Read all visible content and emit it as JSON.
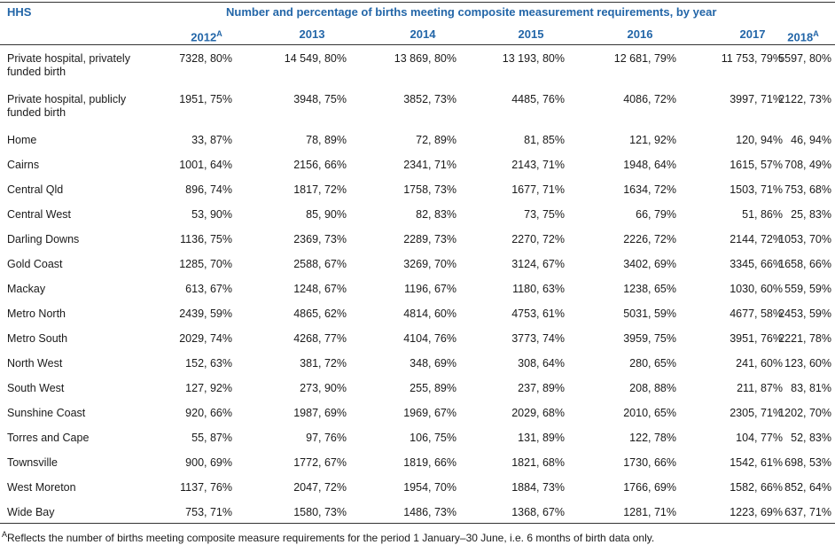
{
  "header": {
    "first_column": "HHS",
    "title": "Number and percentage of births meeting composite measurement requirements, by year"
  },
  "columns": [
    {
      "year": "2012",
      "note": "A"
    },
    {
      "year": "2013"
    },
    {
      "year": "2014"
    },
    {
      "year": "2015"
    },
    {
      "year": "2016"
    },
    {
      "year": "2017"
    },
    {
      "year": "2018",
      "note": "A"
    }
  ],
  "rows": [
    {
      "label": "Private hospital, privately funded birth",
      "cells": [
        "7328, 80%",
        "14 549, 80%",
        "13 869, 80%",
        "13 193, 80%",
        "12 681, 79%",
        "11 753, 79%",
        "5597, 80%"
      ]
    },
    {
      "label": "Private hospital, publicly funded birth",
      "cells": [
        "1951, 75%",
        "3948, 75%",
        "3852, 73%",
        "4485, 76%",
        "4086, 72%",
        "3997, 71%",
        "2122, 73%"
      ]
    },
    {
      "label": "Home",
      "cells": [
        "33, 87%",
        "78, 89%",
        "72, 89%",
        "81, 85%",
        "121, 92%",
        "120, 94%",
        "46, 94%"
      ]
    },
    {
      "label": "Cairns",
      "cells": [
        "1001, 64%",
        "2156, 66%",
        "2341, 71%",
        "2143, 71%",
        "1948, 64%",
        "1615, 57%",
        "708, 49%"
      ]
    },
    {
      "label": "Central Qld",
      "cells": [
        "896, 74%",
        "1817, 72%",
        "1758, 73%",
        "1677, 71%",
        "1634, 72%",
        "1503, 71%",
        "753, 68%"
      ]
    },
    {
      "label": "Central West",
      "cells": [
        "53, 90%",
        "85, 90%",
        "82, 83%",
        "73, 75%",
        "66, 79%",
        "51, 86%",
        "25, 83%"
      ]
    },
    {
      "label": "Darling Downs",
      "cells": [
        "1136, 75%",
        "2369, 73%",
        "2289, 73%",
        "2270, 72%",
        "2226, 72%",
        "2144, 72%",
        "1053, 70%"
      ]
    },
    {
      "label": "Gold Coast",
      "cells": [
        "1285, 70%",
        "2588, 67%",
        "3269, 70%",
        "3124, 67%",
        "3402, 69%",
        "3345, 66%",
        "1658, 66%"
      ]
    },
    {
      "label": "Mackay",
      "cells": [
        "613, 67%",
        "1248, 67%",
        "1196, 67%",
        "1180, 63%",
        "1238, 65%",
        "1030, 60%",
        "559, 59%"
      ]
    },
    {
      "label": "Metro North",
      "cells": [
        "2439, 59%",
        "4865, 62%",
        "4814, 60%",
        "4753, 61%",
        "5031, 59%",
        "4677, 58%",
        "2453, 59%"
      ]
    },
    {
      "label": "Metro South",
      "cells": [
        "2029, 74%",
        "4268, 77%",
        "4104, 76%",
        "3773, 74%",
        "3959, 75%",
        "3951, 76%",
        "2221, 78%"
      ]
    },
    {
      "label": "North West",
      "cells": [
        "152, 63%",
        "381, 72%",
        "348, 69%",
        "308, 64%",
        "280, 65%",
        "241, 60%",
        "123, 60%"
      ]
    },
    {
      "label": "South West",
      "cells": [
        "127, 92%",
        "273, 90%",
        "255, 89%",
        "237, 89%",
        "208, 88%",
        "211, 87%",
        "83, 81%"
      ]
    },
    {
      "label": "Sunshine Coast",
      "cells": [
        "920, 66%",
        "1987, 69%",
        "1969, 67%",
        "2029, 68%",
        "2010, 65%",
        "2305, 71%",
        "1202, 70%"
      ]
    },
    {
      "label": "Torres and Cape",
      "cells": [
        "55, 87%",
        "97, 76%",
        "106, 75%",
        "131, 89%",
        "122, 78%",
        "104, 77%",
        "52, 83%"
      ]
    },
    {
      "label": "Townsville",
      "cells": [
        "900, 69%",
        "1772, 67%",
        "1819, 66%",
        "1821, 68%",
        "1730, 66%",
        "1542, 61%",
        "698, 53%"
      ]
    },
    {
      "label": "West Moreton",
      "cells": [
        "1137, 76%",
        "2047, 72%",
        "1954, 70%",
        "1884, 73%",
        "1766, 69%",
        "1582, 66%",
        "852, 64%"
      ]
    },
    {
      "label": "Wide Bay",
      "cells": [
        "753, 71%",
        "1580, 73%",
        "1486, 73%",
        "1368, 67%",
        "1281, 71%",
        "1223, 69%",
        "637, 71%"
      ]
    }
  ],
  "footnote": {
    "note": "A",
    "text": "Reflects the number of births meeting composite measure requirements for the period 1 January–30 June, i.e. 6 months of birth data only."
  }
}
